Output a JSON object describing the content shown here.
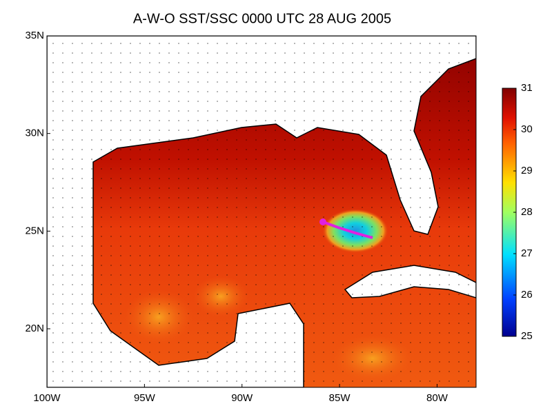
{
  "map": {
    "title": "A-W-O SST/SSC   0000 UTC 28 AUG 2005",
    "xlim": [
      -100,
      -78
    ],
    "ylim": [
      17,
      35
    ],
    "xticks": [
      {
        "value": -100,
        "label": "100W"
      },
      {
        "value": -95,
        "label": "95W"
      },
      {
        "value": -90,
        "label": "90W"
      },
      {
        "value": -85,
        "label": "85W"
      },
      {
        "value": -80,
        "label": "80W"
      }
    ],
    "yticks": [
      {
        "value": 20,
        "label": "20N"
      },
      {
        "value": 25,
        "label": "25N"
      },
      {
        "value": 30,
        "label": "30N"
      },
      {
        "value": 35,
        "label": "35N"
      }
    ],
    "colorbar": {
      "lim": [
        25,
        31
      ],
      "ticks": [
        25,
        26,
        27,
        28,
        29,
        30,
        31
      ]
    }
  }
}
